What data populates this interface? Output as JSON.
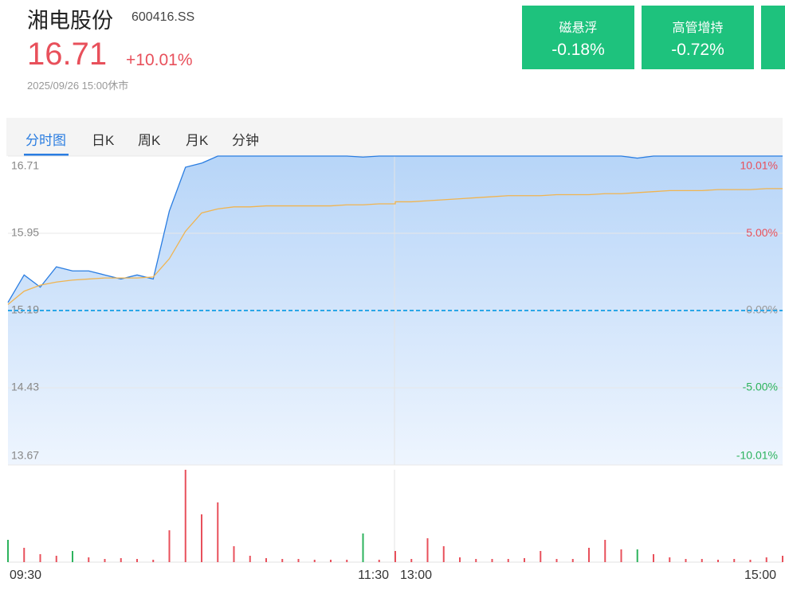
{
  "header": {
    "name": "湘电股份",
    "code": "600416.SS",
    "price": "16.71",
    "change": "+10.01%",
    "time": "2025/09/26 15:00休市"
  },
  "tags": [
    {
      "name": "磁悬浮",
      "change": "-0.18%"
    },
    {
      "name": "高管增持",
      "change": "-0.72%"
    }
  ],
  "tabs": [
    "分时图",
    "日K",
    "周K",
    "月K",
    "分钟"
  ],
  "chart_data": [
    {
      "type": "line",
      "x": [
        "09:30",
        "09:35",
        "09:40",
        "09:45",
        "09:50",
        "09:55",
        "10:00",
        "10:05",
        "10:10",
        "10:15",
        "10:20",
        "10:25",
        "10:30",
        "10:35",
        "10:40",
        "10:45",
        "10:50",
        "10:55",
        "11:00",
        "11:05",
        "11:10",
        "11:15",
        "11:20",
        "11:25",
        "11:30",
        "13:00",
        "13:05",
        "13:10",
        "13:15",
        "13:20",
        "13:25",
        "13:30",
        "13:35",
        "13:40",
        "13:45",
        "13:50",
        "13:55",
        "14:00",
        "14:05",
        "14:10",
        "14:15",
        "14:20",
        "14:25",
        "14:30",
        "14:35",
        "14:40",
        "14:45",
        "14:50",
        "14:55",
        "15:00"
      ],
      "series": [
        {
          "color": "#2a7de1",
          "values": [
            15.27,
            15.54,
            15.42,
            15.62,
            15.58,
            15.58,
            15.54,
            15.5,
            15.54,
            15.5,
            16.17,
            16.6,
            16.64,
            16.71,
            16.71,
            16.71,
            16.71,
            16.71,
            16.71,
            16.71,
            16.71,
            16.71,
            16.7,
            16.71,
            16.71,
            16.71,
            16.71,
            16.71,
            16.71,
            16.71,
            16.71,
            16.71,
            16.71,
            16.71,
            16.71,
            16.71,
            16.71,
            16.71,
            16.71,
            16.71,
            16.69,
            16.71,
            16.71,
            16.71,
            16.71,
            16.71,
            16.71,
            16.71,
            16.71,
            16.71
          ]
        },
        {
          "color": "#f0b450",
          "values": [
            15.25,
            15.38,
            15.44,
            15.47,
            15.49,
            15.5,
            15.51,
            15.51,
            15.51,
            15.52,
            15.7,
            15.97,
            16.15,
            16.19,
            16.21,
            16.21,
            16.22,
            16.22,
            16.22,
            16.22,
            16.22,
            16.23,
            16.23,
            16.24,
            16.24,
            16.26,
            16.26,
            16.27,
            16.28,
            16.29,
            16.3,
            16.31,
            16.32,
            16.32,
            16.32,
            16.33,
            16.33,
            16.33,
            16.34,
            16.34,
            16.35,
            16.36,
            16.37,
            16.37,
            16.37,
            16.38,
            16.38,
            16.38,
            16.39,
            16.39
          ]
        }
      ],
      "ylim": [
        13.67,
        16.71
      ],
      "yticks": [
        16.71,
        15.95,
        15.19,
        14.43,
        13.67
      ],
      "y2lim": [
        -10.01,
        10.01
      ],
      "y2ticks": [
        {
          "value": 10.01,
          "label": "10.01%"
        },
        {
          "value": 5,
          "label": "5.00%"
        },
        {
          "value": 0,
          "label": "0.00%"
        },
        {
          "value": -5,
          "label": "-5.00%"
        },
        {
          "value": -10.01,
          "label": "-10.01%"
        }
      ],
      "reference_line": 15.19,
      "grid": true
    },
    {
      "type": "bar",
      "x": [
        "09:30",
        "09:35",
        "09:40",
        "09:45",
        "09:50",
        "09:55",
        "10:00",
        "10:05",
        "10:10",
        "10:15",
        "10:20",
        "10:25",
        "10:30",
        "10:35",
        "10:40",
        "10:45",
        "10:50",
        "10:55",
        "11:00",
        "11:05",
        "11:10",
        "11:15",
        "11:20",
        "11:25",
        "11:30",
        "13:00",
        "13:05",
        "13:10",
        "13:15",
        "13:20",
        "13:25",
        "13:30",
        "13:35",
        "13:40",
        "13:45",
        "13:50",
        "13:55",
        "14:00",
        "14:05",
        "14:10",
        "14:15",
        "14:20",
        "14:25",
        "14:30",
        "14:35",
        "14:40",
        "14:45",
        "14:50",
        "14:55",
        "15:00"
      ],
      "values": [
        28,
        18,
        10,
        8,
        14,
        6,
        4,
        5,
        4,
        3,
        40,
        116,
        60,
        75,
        20,
        8,
        5,
        4,
        4,
        3,
        3,
        3,
        36,
        3,
        4,
        14,
        4,
        30,
        20,
        6,
        4,
        4,
        4,
        5,
        14,
        4,
        4,
        18,
        28,
        16,
        16,
        10,
        6,
        4,
        4,
        3,
        4,
        3,
        6,
        8
      ],
      "colors": [
        "#2db35d",
        "#e8505b",
        "#e8505b",
        "#e8505b",
        "#2db35d",
        "#e8505b",
        "#e8505b",
        "#e8505b",
        "#e8505b",
        "#e8505b",
        "#e8505b",
        "#e8505b",
        "#e8505b",
        "#e8505b",
        "#e8505b",
        "#e8505b",
        "#e8505b",
        "#e8505b",
        "#e8505b",
        "#e8505b",
        "#e8505b",
        "#e8505b",
        "#2db35d",
        "#e8505b",
        "#e8505b",
        "#e8505b",
        "#e8505b",
        "#e8505b",
        "#e8505b",
        "#e8505b",
        "#e8505b",
        "#e8505b",
        "#e8505b",
        "#e8505b",
        "#e8505b",
        "#e8505b",
        "#e8505b",
        "#e8505b",
        "#e8505b",
        "#e8505b",
        "#2db35d",
        "#e8505b",
        "#e8505b",
        "#e8505b",
        "#e8505b",
        "#e8505b",
        "#e8505b",
        "#e8505b",
        "#e8505b",
        "#e8505b"
      ],
      "ylim": [
        0,
        116
      ],
      "xticks": [
        "09:30",
        "11:30",
        "13:00",
        "15:00"
      ]
    }
  ]
}
